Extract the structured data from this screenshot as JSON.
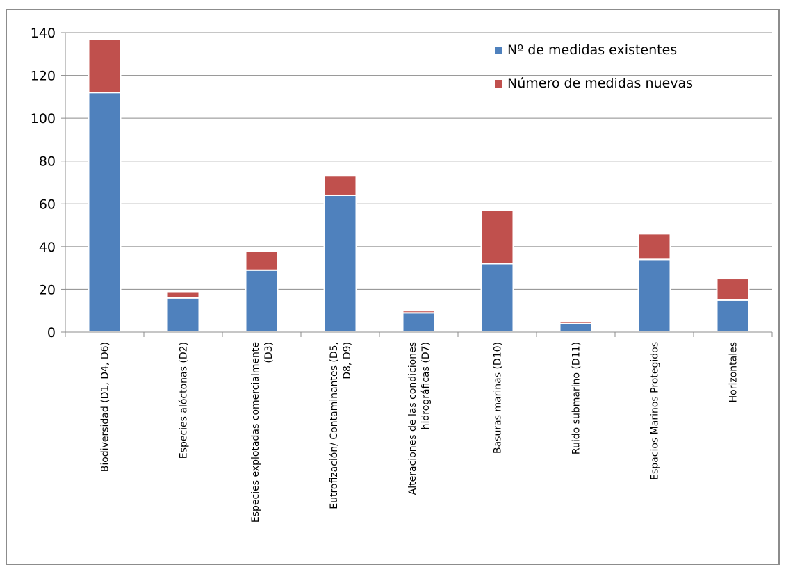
{
  "chart_data": {
    "type": "bar",
    "stacked": true,
    "categories": [
      [
        "Biodiversidad (D1, D4, D6)"
      ],
      [
        "Especies alóctonas (D2)"
      ],
      [
        "Especies explotadas comercialmente",
        "(D3)"
      ],
      [
        "Eutrofización/ Contaminantes  (D5,",
        "D8, D9)"
      ],
      [
        "Alteraciones de las condiciones",
        "hidrográficas (D7)"
      ],
      [
        "Basuras marinas (D10)"
      ],
      [
        "Ruido submarino (D11)"
      ],
      [
        "Espacios Marinos Protegidos"
      ],
      [
        "Horizontales"
      ]
    ],
    "series": [
      {
        "name": "Nº de medidas existentes",
        "color": "#4f81bd",
        "values": [
          112,
          16,
          29,
          64,
          9,
          32,
          4,
          34,
          15
        ]
      },
      {
        "name": "Número de medidas nuevas",
        "color": "#c0504d",
        "values": [
          25,
          3,
          9,
          9,
          1,
          25,
          1,
          12,
          10
        ]
      }
    ],
    "ylim": [
      0,
      140
    ],
    "yticks": [
      0,
      20,
      40,
      60,
      80,
      100,
      120,
      140
    ],
    "grid": true,
    "legend": "top-right",
    "title": "",
    "xlabel": "",
    "ylabel": ""
  }
}
